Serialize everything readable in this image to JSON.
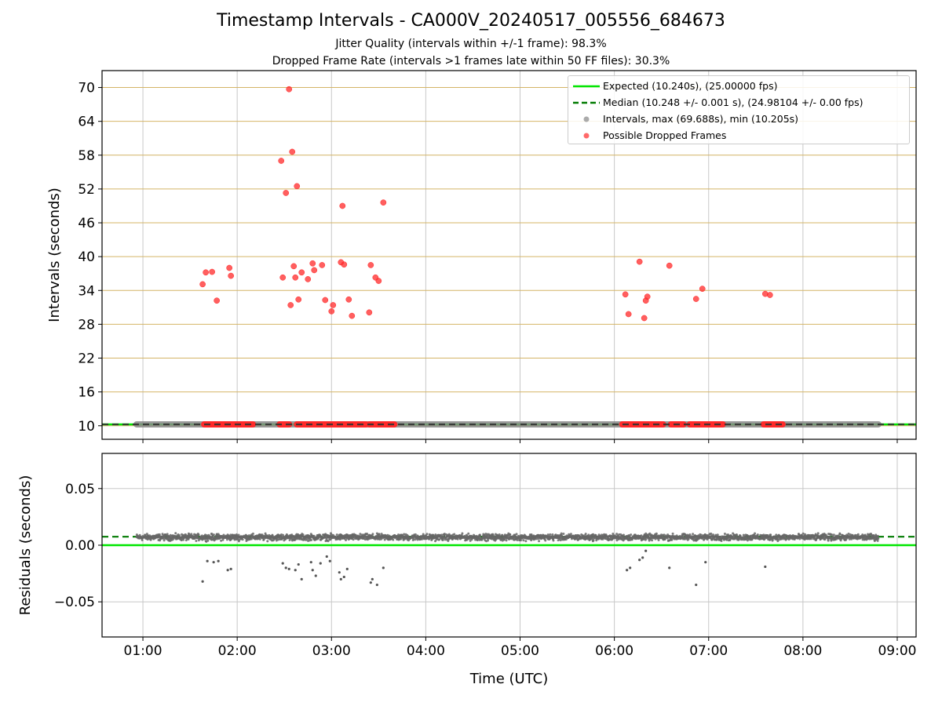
{
  "figure": {
    "title": "Timestamp Intervals - CA000V_20240517_005556_684673",
    "subtitle_lines": [
      "Jitter Quality (intervals within +/-1 frame): 98.3%",
      "Dropped Frame Rate (intervals >1 frames late within 50 FF files): 30.3%"
    ]
  },
  "colors": {
    "expected": "#00e600",
    "median": "#007a00",
    "intervals": "#888888",
    "dropped": "#ff2a2a",
    "threshold_grid": "#d4b466",
    "grid": "#c8c8c8"
  },
  "legend": {
    "location": "upper right",
    "entries": [
      {
        "label": "Expected (10.240s), (25.00000 fps)",
        "style": "solid-line",
        "color": "#00e600"
      },
      {
        "label": "Median (10.248 +/- 0.001 s), (24.98104 +/- 0.00 fps)",
        "style": "dashed-line",
        "color": "#007a00"
      },
      {
        "label": "Intervals, max (69.688s), min (10.205s)",
        "style": "marker",
        "color": "#888888"
      },
      {
        "label": "Possible Dropped Frames",
        "style": "marker",
        "color": "#ff2a2a"
      }
    ]
  },
  "chart_data": [
    {
      "type": "scatter",
      "xlabel": "",
      "ylabel": "Intervals (seconds)",
      "xlim": [
        "00:34",
        "09:12"
      ],
      "ylim": [
        7.6,
        73.0
      ],
      "x_tick_labels": [
        "01:00",
        "02:00",
        "03:00",
        "04:00",
        "05:00",
        "06:00",
        "07:00",
        "08:00",
        "09:00"
      ],
      "y_ticks": [
        10,
        16,
        22,
        28,
        34,
        40,
        46,
        52,
        58,
        64,
        70
      ],
      "grid": "x major (gray), y major (tan)",
      "expected_line": 10.24,
      "median_line": 10.248,
      "series": [
        {
          "name": "Intervals, max (69.688s), min (10.205s)",
          "start": "00:56",
          "end": "08:48",
          "typical_interval": 10.248,
          "max": 69.688,
          "min": 10.205
        },
        {
          "name": "Possible Dropped Frames",
          "dense_bands_at_baseline": [
            [
              "01:39",
              "02:10"
            ],
            [
              "02:27",
              "02:33"
            ],
            [
              "02:38",
              "03:22"
            ],
            [
              "03:24",
              "03:40"
            ],
            [
              "06:05",
              "06:31"
            ],
            [
              "06:36",
              "06:44"
            ],
            [
              "06:48",
              "07:09"
            ],
            [
              "07:35",
              "07:47"
            ]
          ],
          "points": [
            [
              "01:38",
              35.1
            ],
            [
              "01:40",
              37.2
            ],
            [
              "01:44",
              37.3
            ],
            [
              "01:47",
              32.2
            ],
            [
              "01:55",
              38.0
            ],
            [
              "01:56",
              36.6
            ],
            [
              "02:28",
              57.0
            ],
            [
              "02:29",
              36.3
            ],
            [
              "02:31",
              51.3
            ],
            [
              "02:33",
              69.7
            ],
            [
              "02:34",
              31.4
            ],
            [
              "02:35",
              58.6
            ],
            [
              "02:36",
              38.3
            ],
            [
              "02:37",
              36.3
            ],
            [
              "02:38",
              52.5
            ],
            [
              "02:39",
              32.4
            ],
            [
              "02:41",
              37.2
            ],
            [
              "02:45",
              36.0
            ],
            [
              "02:48",
              38.8
            ],
            [
              "02:49",
              37.6
            ],
            [
              "02:54",
              38.5
            ],
            [
              "02:56",
              32.3
            ],
            [
              "03:00",
              30.3
            ],
            [
              "03:01",
              31.4
            ],
            [
              "03:06",
              39.0
            ],
            [
              "03:07",
              49.0
            ],
            [
              "03:08",
              38.6
            ],
            [
              "03:11",
              32.4
            ],
            [
              "03:13",
              29.5
            ],
            [
              "03:24",
              30.1
            ],
            [
              "03:25",
              38.5
            ],
            [
              "03:28",
              36.3
            ],
            [
              "03:30",
              35.7
            ],
            [
              "03:33",
              49.6
            ],
            [
              "06:07",
              33.3
            ],
            [
              "06:09",
              29.8
            ],
            [
              "06:16",
              39.1
            ],
            [
              "06:19",
              29.1
            ],
            [
              "06:20",
              32.2
            ],
            [
              "06:21",
              32.9
            ],
            [
              "06:35",
              38.4
            ],
            [
              "06:52",
              32.5
            ],
            [
              "06:56",
              34.3
            ],
            [
              "07:36",
              33.4
            ],
            [
              "07:39",
              33.2
            ]
          ]
        }
      ]
    },
    {
      "type": "scatter",
      "xlabel": "Time (UTC)",
      "ylabel": "Residuals (seconds)",
      "xlim": [
        "00:34",
        "09:12"
      ],
      "ylim": [
        -0.081,
        0.081
      ],
      "x_tick_labels": [
        "01:00",
        "02:00",
        "03:00",
        "04:00",
        "05:00",
        "06:00",
        "07:00",
        "08:00",
        "09:00"
      ],
      "y_tick_labels": [
        "0.05",
        "0.00",
        "−0.05"
      ],
      "y_ticks": [
        0.05,
        0.0,
        -0.05
      ],
      "grid": "x and y major (gray)",
      "expected_line": 0.0,
      "median_line": 0.0075,
      "series": [
        {
          "name": "Residuals",
          "start": "00:56",
          "end": "08:48",
          "typical": 0.007,
          "spread": 0.004,
          "outliers": [
            [
              "01:38",
              -0.032
            ],
            [
              "01:41",
              -0.014
            ],
            [
              "01:45",
              -0.015
            ],
            [
              "01:48",
              -0.014
            ],
            [
              "01:54",
              -0.022
            ],
            [
              "01:56",
              -0.021
            ],
            [
              "02:29",
              -0.016
            ],
            [
              "02:31",
              -0.02
            ],
            [
              "02:33",
              -0.021
            ],
            [
              "02:37",
              -0.022
            ],
            [
              "02:39",
              -0.017
            ],
            [
              "02:41",
              -0.03
            ],
            [
              "02:47",
              -0.015
            ],
            [
              "02:48",
              -0.022
            ],
            [
              "02:50",
              -0.027
            ],
            [
              "02:53",
              -0.016
            ],
            [
              "02:57",
              -0.01
            ],
            [
              "02:59",
              -0.014
            ],
            [
              "03:05",
              -0.024
            ],
            [
              "03:06",
              -0.03
            ],
            [
              "03:08",
              -0.028
            ],
            [
              "03:10",
              -0.021
            ],
            [
              "03:25",
              -0.033
            ],
            [
              "03:26",
              -0.03
            ],
            [
              "03:29",
              -0.035
            ],
            [
              "03:33",
              -0.02
            ],
            [
              "06:08",
              -0.022
            ],
            [
              "06:10",
              -0.02
            ],
            [
              "06:16",
              -0.013
            ],
            [
              "06:18",
              -0.011
            ],
            [
              "06:20",
              -0.005
            ],
            [
              "06:35",
              -0.02
            ],
            [
              "06:52",
              -0.035
            ],
            [
              "06:58",
              -0.015
            ],
            [
              "07:36",
              -0.019
            ]
          ]
        }
      ]
    }
  ]
}
